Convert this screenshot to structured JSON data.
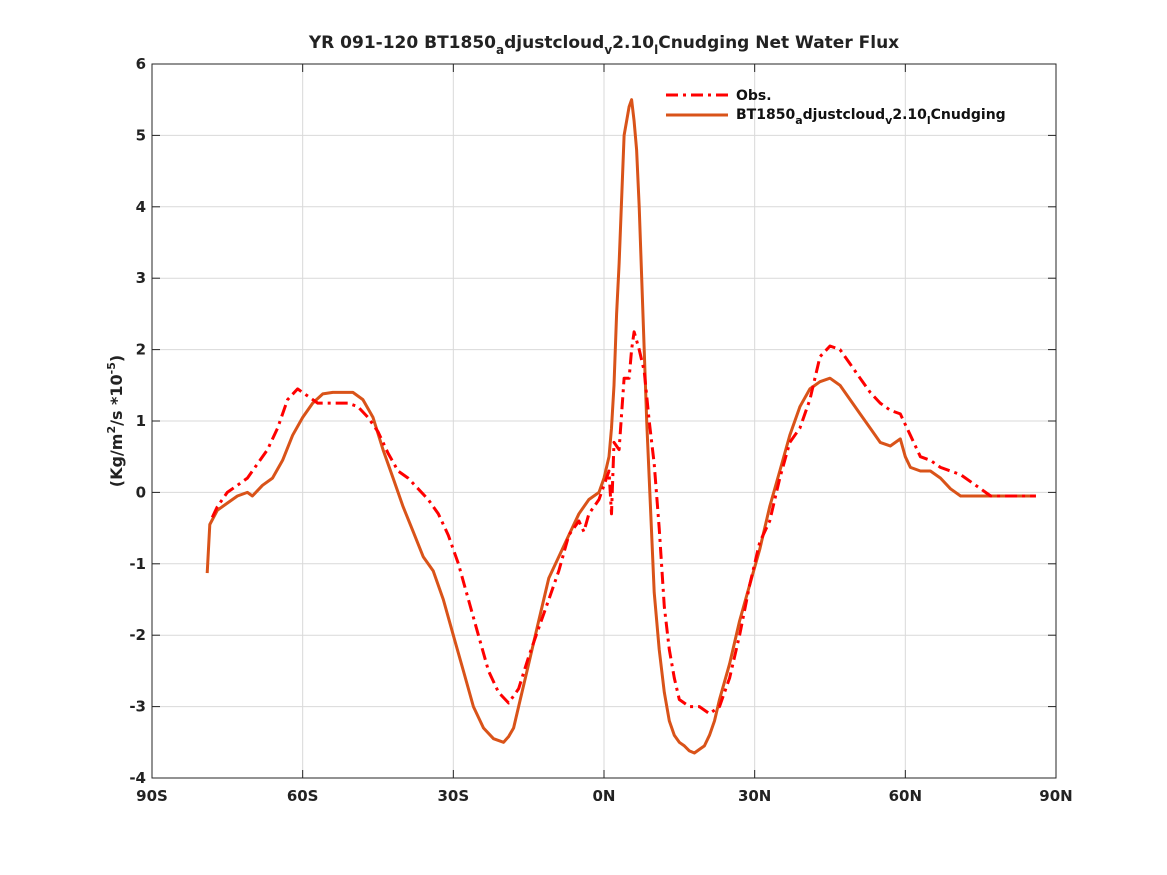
{
  "chart_data": {
    "type": "line",
    "title": {
      "prefix": "YR 091-120 BT1850",
      "sub1": "a",
      "mid1": "djustcloud",
      "sub2": "v",
      "mid2": "2.10",
      "sub3": "l",
      "suffix": "Cnudging  Net Water Flux"
    },
    "ylabel": {
      "prefix": "(Kg/m",
      "sup1": "2",
      "mid": "/s *10",
      "sup2": "-5",
      "suffix": ")"
    },
    "xlim": [
      -90,
      90
    ],
    "ylim": [
      -4,
      6
    ],
    "xticks": [
      -90,
      -60,
      -30,
      0,
      30,
      60,
      90
    ],
    "xtick_labels": [
      "90S",
      "60S",
      "30S",
      "0N",
      "30N",
      "60N",
      "90N"
    ],
    "yticks": [
      -4,
      -3,
      -2,
      -1,
      0,
      1,
      2,
      3,
      4,
      5,
      6
    ],
    "ytick_labels": [
      "-4",
      "-3",
      "-2",
      "-1",
      "0",
      "1",
      "2",
      "3",
      "4",
      "5",
      "6"
    ],
    "grid": true,
    "legend_position": "top-right",
    "series": [
      {
        "name": "Obs.",
        "color": "#ff0000",
        "style": "dash-dot",
        "x": [
          -78,
          -77,
          -75,
          -73,
          -71,
          -69,
          -67,
          -65,
          -63,
          -61,
          -59,
          -57,
          -55,
          -53,
          -51,
          -49,
          -47,
          -45,
          -43,
          -41,
          -39,
          -37,
          -35,
          -33,
          -31,
          -29,
          -27,
          -25,
          -23,
          -21,
          -19,
          -17,
          -15,
          -13,
          -11,
          -9,
          -7,
          -5,
          -4,
          -3,
          -2,
          -1,
          0,
          1,
          1.5,
          2,
          3,
          4,
          5,
          5.5,
          6,
          7,
          8,
          9,
          10,
          11,
          12,
          13,
          14,
          15,
          17,
          19,
          21,
          23,
          25,
          27,
          29,
          31,
          33,
          35,
          37,
          39,
          41,
          43,
          45,
          47,
          49,
          51,
          53,
          55,
          57,
          59,
          61,
          63,
          65,
          67,
          69,
          71,
          73,
          75,
          77,
          79,
          81,
          83,
          85,
          86
        ],
        "values": [
          -0.35,
          -0.2,
          0.0,
          0.1,
          0.2,
          0.4,
          0.6,
          0.9,
          1.3,
          1.45,
          1.35,
          1.25,
          1.25,
          1.25,
          1.25,
          1.2,
          1.05,
          0.85,
          0.55,
          0.3,
          0.2,
          0.05,
          -0.1,
          -0.3,
          -0.6,
          -1.0,
          -1.5,
          -2.0,
          -2.5,
          -2.8,
          -2.95,
          -2.75,
          -2.3,
          -1.9,
          -1.5,
          -1.1,
          -0.6,
          -0.4,
          -0.55,
          -0.3,
          -0.2,
          -0.1,
          0.1,
          0.3,
          -0.3,
          0.7,
          0.6,
          1.6,
          1.6,
          2.0,
          2.25,
          2.0,
          1.7,
          1.0,
          0.4,
          -0.5,
          -1.6,
          -2.2,
          -2.6,
          -2.9,
          -3.0,
          -3.0,
          -3.1,
          -3.0,
          -2.6,
          -2.0,
          -1.3,
          -0.7,
          -0.4,
          0.2,
          0.7,
          0.9,
          1.3,
          1.9,
          2.05,
          2.0,
          1.8,
          1.6,
          1.4,
          1.25,
          1.15,
          1.1,
          0.8,
          0.5,
          0.45,
          0.35,
          0.3,
          0.25,
          0.15,
          0.05,
          -0.05,
          -0.05,
          -0.05,
          -0.05,
          -0.05,
          -0.05
        ]
      },
      {
        "name": "BT1850adjustcloudv2.10lCnudging",
        "name_parts": {
          "prefix": "BT1850",
          "sub1": "a",
          "mid1": "djustcloud",
          "sub2": "v",
          "mid2": "2.10",
          "sub3": "l",
          "suffix": "Cnudging"
        },
        "color": "#d95319",
        "style": "solid",
        "x": [
          -79,
          -78.5,
          -77,
          -75,
          -73,
          -71,
          -70,
          -68,
          -66,
          -64,
          -62,
          -60,
          -58,
          -56,
          -54,
          -52,
          -50,
          -48,
          -46,
          -44,
          -42,
          -40,
          -38,
          -36,
          -34,
          -32,
          -30,
          -28,
          -26,
          -24,
          -22,
          -20,
          -19,
          -18,
          -17,
          -15,
          -13,
          -11,
          -9,
          -7,
          -5,
          -3,
          -1,
          0,
          1,
          1.5,
          2,
          2.5,
          3,
          3.5,
          4,
          4.5,
          5,
          5.5,
          6,
          6.5,
          7,
          7.5,
          8,
          8.5,
          9,
          9.5,
          10,
          11,
          12,
          13,
          14,
          15,
          16,
          17,
          18,
          19,
          20,
          21,
          22,
          23,
          25,
          27,
          29,
          31,
          33,
          35,
          37,
          39,
          41,
          43,
          45,
          47,
          49,
          51,
          53,
          55,
          57,
          59,
          60,
          61,
          63,
          65,
          67,
          69,
          71,
          73,
          75,
          77,
          79,
          81,
          83,
          85,
          86
        ],
        "values": [
          -1.13,
          -0.45,
          -0.25,
          -0.15,
          -0.05,
          0.0,
          -0.05,
          0.1,
          0.2,
          0.45,
          0.8,
          1.05,
          1.25,
          1.38,
          1.4,
          1.4,
          1.4,
          1.3,
          1.05,
          0.6,
          0.2,
          -0.2,
          -0.55,
          -0.9,
          -1.1,
          -1.5,
          -2.0,
          -2.5,
          -3.0,
          -3.3,
          -3.45,
          -3.5,
          -3.42,
          -3.3,
          -3.0,
          -2.4,
          -1.8,
          -1.2,
          -0.9,
          -0.6,
          -0.3,
          -0.1,
          0.0,
          0.2,
          0.5,
          0.9,
          1.5,
          2.5,
          3.2,
          4.1,
          5.0,
          5.2,
          5.4,
          5.5,
          5.2,
          4.8,
          4.0,
          3.0,
          2.0,
          1.0,
          0.2,
          -0.6,
          -1.4,
          -2.2,
          -2.8,
          -3.2,
          -3.4,
          -3.5,
          -3.55,
          -3.62,
          -3.65,
          -3.6,
          -3.55,
          -3.4,
          -3.2,
          -2.9,
          -2.4,
          -1.8,
          -1.3,
          -0.8,
          -0.2,
          0.3,
          0.8,
          1.2,
          1.45,
          1.55,
          1.6,
          1.5,
          1.3,
          1.1,
          0.9,
          0.7,
          0.65,
          0.75,
          0.5,
          0.35,
          0.3,
          0.3,
          0.2,
          0.05,
          -0.05,
          -0.05,
          -0.05,
          -0.05,
          -0.05,
          -0.05,
          -0.05,
          -0.05,
          -0.05
        ]
      }
    ]
  }
}
